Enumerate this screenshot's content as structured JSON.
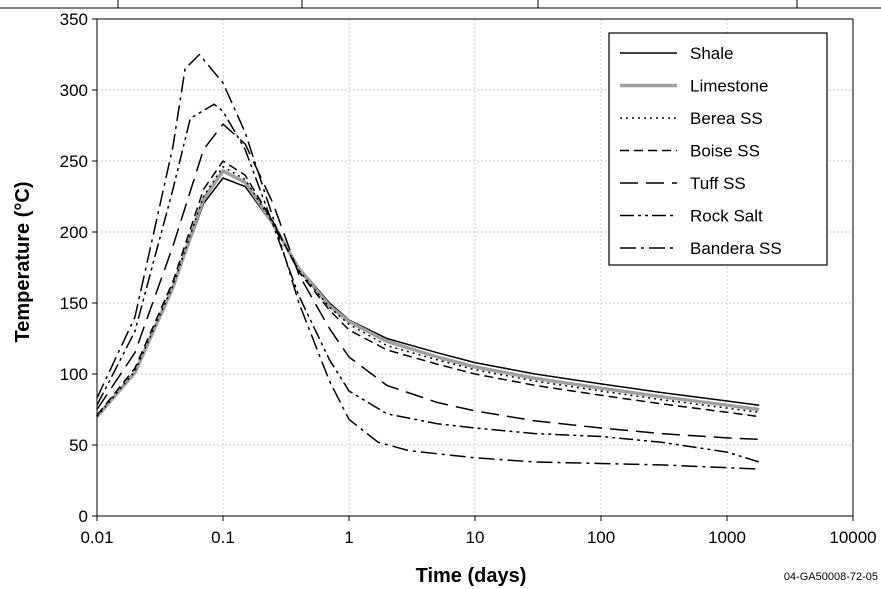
{
  "chart_data": {
    "type": "line",
    "xlabel": "Time (days)",
    "ylabel": "Temperature (°C)",
    "xscale": "log",
    "xlim": [
      0.01,
      10000
    ],
    "ylim": [
      0,
      350
    ],
    "x_ticks": [
      "0.01",
      "0.1",
      "1",
      "10",
      "100",
      "1000",
      "10000"
    ],
    "y_ticks": [
      "0",
      "50",
      "100",
      "150",
      "200",
      "250",
      "300",
      "350"
    ],
    "grid": true,
    "legend_position": "top-right",
    "annotation": "04-GA50008-72-05",
    "series": [
      {
        "name": "Shale",
        "color": "#000000",
        "dash": "solid",
        "x": [
          0.01,
          0.02,
          0.04,
          0.07,
          0.1,
          0.15,
          0.25,
          0.4,
          0.7,
          1,
          2,
          5,
          10,
          30,
          100,
          300,
          1000,
          1800
        ],
        "y": [
          70,
          100,
          160,
          220,
          238,
          232,
          205,
          175,
          150,
          138,
          125,
          115,
          108,
          100,
          93,
          87,
          81,
          78
        ]
      },
      {
        "name": "Limestone",
        "color": "#a0a0a0",
        "dash": "solid",
        "x": [
          0.01,
          0.02,
          0.04,
          0.07,
          0.1,
          0.15,
          0.25,
          0.4,
          0.7,
          1,
          2,
          5,
          10,
          30,
          100,
          300,
          1000,
          1800
        ],
        "y": [
          70,
          101,
          161,
          223,
          243,
          235,
          206,
          174,
          148,
          137,
          123,
          112,
          105,
          97,
          90,
          84,
          78,
          75
        ]
      },
      {
        "name": "Berea SS",
        "color": "#000000",
        "dash": "dotted",
        "x": [
          0.01,
          0.02,
          0.04,
          0.07,
          0.1,
          0.15,
          0.25,
          0.4,
          0.7,
          1,
          2,
          5,
          10,
          30,
          100,
          300,
          1000,
          1800
        ],
        "y": [
          70,
          102,
          162,
          225,
          246,
          237,
          206,
          173,
          147,
          135,
          120,
          110,
          103,
          95,
          88,
          82,
          76,
          73
        ]
      },
      {
        "name": "Boise SS",
        "color": "#000000",
        "dash": "dashed",
        "x": [
          0.01,
          0.02,
          0.04,
          0.07,
          0.1,
          0.15,
          0.25,
          0.4,
          0.7,
          1,
          2,
          5,
          10,
          30,
          100,
          300,
          1000,
          1800
        ],
        "y": [
          71,
          104,
          165,
          230,
          250,
          240,
          207,
          172,
          145,
          131,
          117,
          107,
          100,
          92,
          85,
          79,
          73,
          70
        ]
      },
      {
        "name": "Tuff SS",
        "color": "#000000",
        "dash": "long-dash",
        "x": [
          0.01,
          0.02,
          0.04,
          0.07,
          0.1,
          0.15,
          0.25,
          0.4,
          0.7,
          1,
          2,
          5,
          10,
          30,
          100,
          300,
          1000,
          1800
        ],
        "y": [
          75,
          115,
          190,
          258,
          276,
          262,
          220,
          170,
          132,
          112,
          92,
          80,
          74,
          67,
          62,
          58,
          55,
          54
        ]
      },
      {
        "name": "Rock Salt",
        "color": "#000000",
        "dash": "dash-dot-dot",
        "x": [
          0.01,
          0.02,
          0.04,
          0.055,
          0.085,
          0.1,
          0.15,
          0.25,
          0.4,
          0.7,
          1,
          2,
          5,
          10,
          30,
          100,
          300,
          1000,
          1800
        ],
        "y": [
          78,
          130,
          230,
          280,
          290,
          285,
          258,
          205,
          155,
          110,
          88,
          72,
          65,
          62,
          58,
          56,
          52,
          45,
          38
        ]
      },
      {
        "name": "Bandera SS",
        "color": "#000000",
        "dash": "dash-dot",
        "x": [
          0.01,
          0.02,
          0.04,
          0.05,
          0.065,
          0.1,
          0.15,
          0.25,
          0.4,
          0.7,
          1,
          1.7,
          3,
          10,
          30,
          100,
          300,
          1000,
          1800
        ],
        "y": [
          83,
          140,
          260,
          315,
          325,
          305,
          270,
          210,
          150,
          95,
          68,
          52,
          46,
          41,
          38,
          37,
          36,
          34,
          33
        ]
      }
    ]
  }
}
